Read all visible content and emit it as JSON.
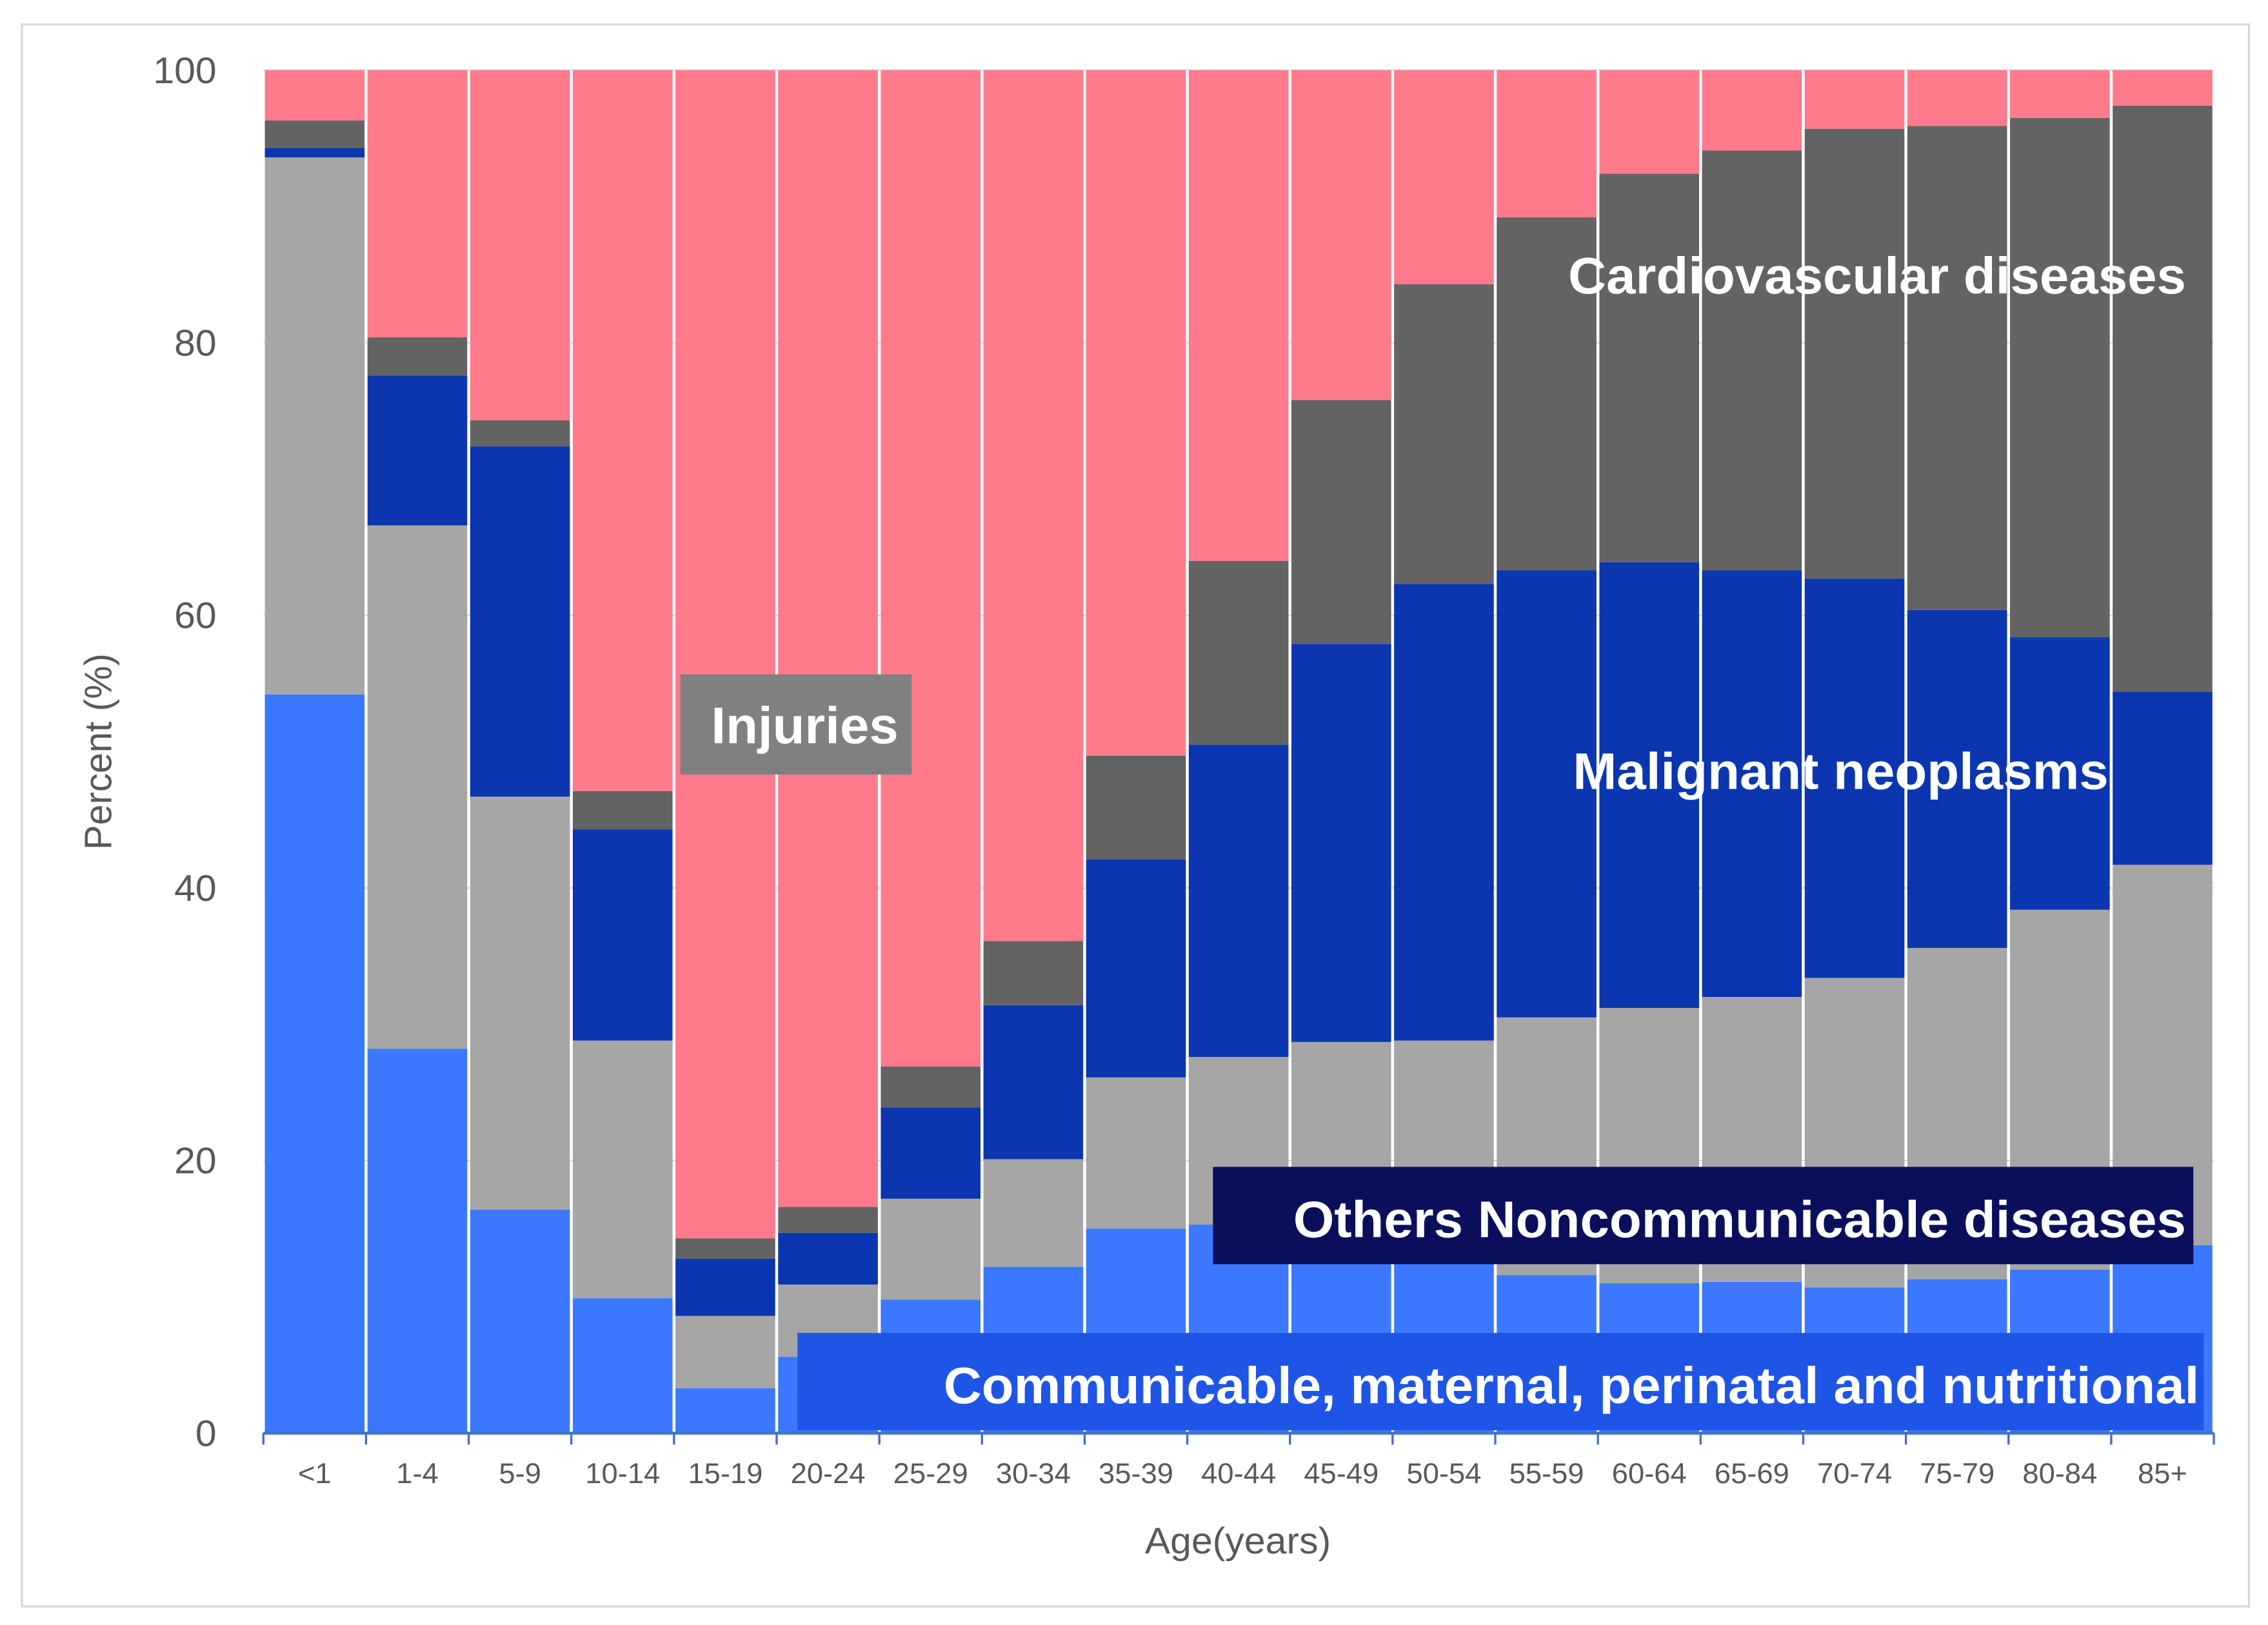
{
  "chart_data": {
    "type": "bar",
    "stacked": true,
    "title": "",
    "xlabel": "Age(years)",
    "ylabel": "Percent (%)",
    "ylim": [
      0,
      100
    ],
    "yticks": [
      0,
      20,
      40,
      60,
      80,
      100
    ],
    "categories": [
      "<1",
      "1-4",
      "5-9",
      "10-14",
      "15-19",
      "20-24",
      "25-29",
      "30-34",
      "35-39",
      "40-44",
      "45-49",
      "50-54",
      "55-59",
      "60-64",
      "65-69",
      "70-74",
      "75-79",
      "80-84",
      "85+"
    ],
    "series": [
      {
        "name": "Communicable, maternal, perinatal and nutritional",
        "color": "#3b78ff",
        "values": [
          54.2,
          28.2,
          16.4,
          9.9,
          3.3,
          5.6,
          9.8,
          12.2,
          15.0,
          15.3,
          13.0,
          12.5,
          11.6,
          11.0,
          11.1,
          10.7,
          11.3,
          12.0,
          13.8
        ]
      },
      {
        "name": "Others Noncommunicable diseases",
        "color": "#a6a6a6",
        "values": [
          39.4,
          38.4,
          30.3,
          18.9,
          5.3,
          5.3,
          7.4,
          7.9,
          11.1,
          12.3,
          15.7,
          16.3,
          18.9,
          20.2,
          20.9,
          22.7,
          24.3,
          26.4,
          27.9
        ]
      },
      {
        "name": "Malignant neoplasms",
        "color": "#0b36b0",
        "values": [
          0.7,
          11.0,
          25.7,
          15.5,
          4.2,
          3.8,
          6.7,
          11.3,
          16.0,
          22.9,
          29.2,
          33.5,
          32.8,
          32.7,
          31.3,
          29.3,
          24.8,
          20.0,
          12.7
        ]
      },
      {
        "name": "Cardiovascular diseases",
        "color": "#636363",
        "values": [
          2.0,
          2.8,
          1.9,
          2.8,
          1.5,
          1.9,
          3.0,
          4.7,
          7.6,
          13.5,
          17.9,
          22.0,
          25.9,
          28.5,
          30.8,
          33.0,
          35.5,
          38.1,
          43.0
        ]
      },
      {
        "name": "Injuries",
        "color": "#ff7a8a",
        "values": [
          3.7,
          19.6,
          25.7,
          52.9,
          85.7,
          83.4,
          73.1,
          63.9,
          50.3,
          36.0,
          24.2,
          15.7,
          10.8,
          7.6,
          5.9,
          4.3,
          4.1,
          3.5,
          2.6
        ]
      }
    ],
    "annotations": {
      "injuries": "Injuries",
      "cardiovascular": "Cardiovascular diseases",
      "malignant": "Malignant neoplasms",
      "others": "Others Noncommunicable diseases",
      "communicable": "Communicable, maternal, perinatal and nutritional"
    },
    "grid": true,
    "legend": "none (inline annotations)"
  }
}
